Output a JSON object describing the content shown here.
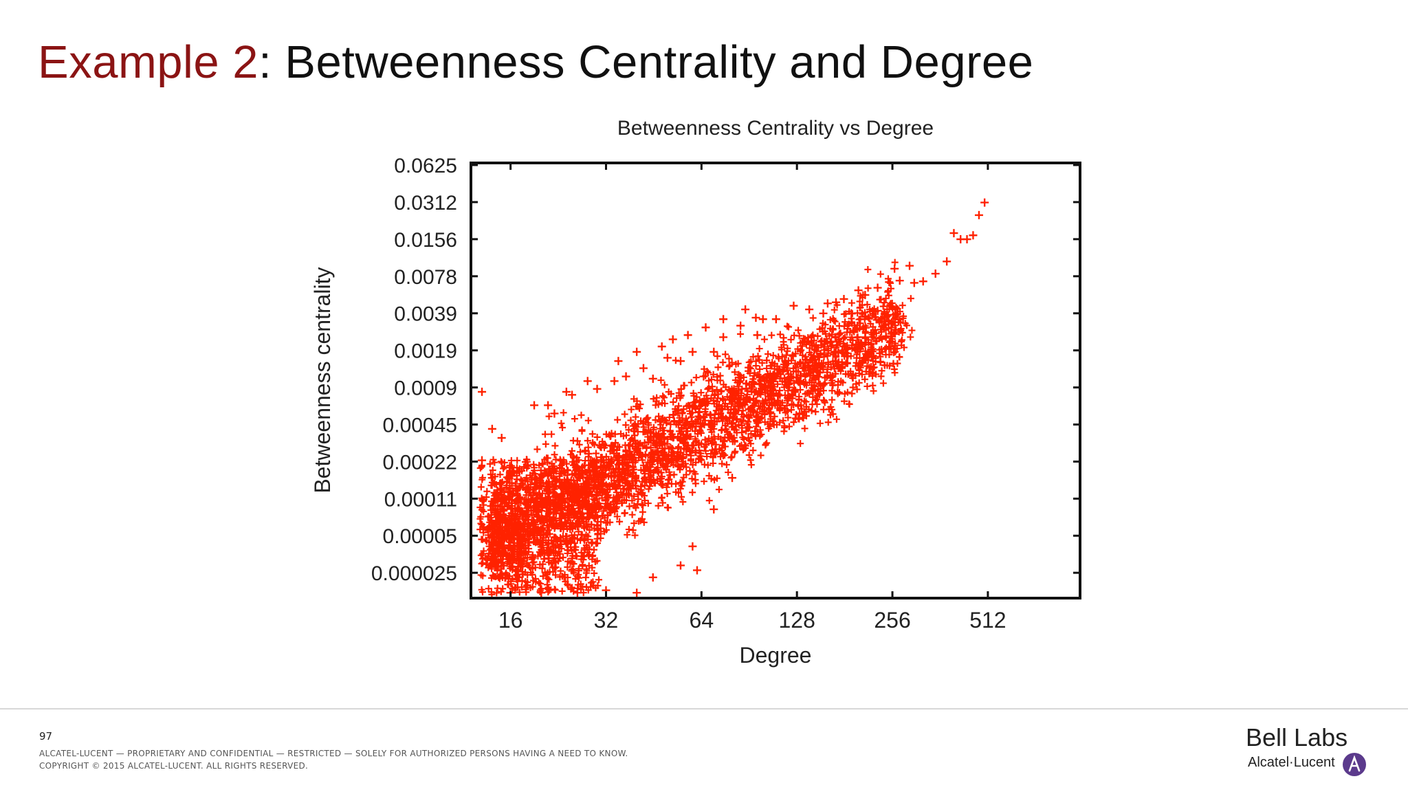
{
  "slide": {
    "title_accent": "Example 2",
    "title_rest": ": Betweenness Centrality and Degree",
    "page_number": "97",
    "footer_line1": "ALCATEL-LUCENT — PROPRIETARY AND CONFIDENTIAL — RESTRICTED — SOLELY FOR AUTHORIZED PERSONS HAVING A NEED TO KNOW.",
    "footer_line2": "COPYRIGHT © 2015 ALCATEL-LUCENT. ALL RIGHTS RESERVED.",
    "brand_name": "Bell Labs",
    "brand_company": "Alcatel·Lucent"
  },
  "chart_data": {
    "type": "scatter",
    "title": "Betweenness Centrality vs Degree",
    "xlabel": "Degree",
    "ylabel": "Betweenness centrality",
    "x_scale": "log2",
    "y_scale": "log2",
    "x_ticks": [
      "16",
      "32",
      "64",
      "128",
      "256",
      "512"
    ],
    "y_ticks": [
      "0.0625",
      "0.0312",
      "0.0156",
      "0.0078",
      "0.0039",
      "0.0019",
      "0.0009",
      "0.00045",
      "0.00022",
      "0.00011",
      "0.00005",
      "0.000025"
    ],
    "xlim": [
      12,
      1000
    ],
    "ylim": [
      1.9e-05,
      0.065
    ],
    "grid": false,
    "marker": "+",
    "color": "#ff2200",
    "point_count_note": "dense cloud of several thousand points; representative sample reproduced",
    "points": [
      [
        13,
        0.0009
      ],
      [
        15,
        0.00038
      ],
      [
        13,
        0.00025
      ],
      [
        14,
        0.00045
      ],
      [
        19,
        0.0007
      ],
      [
        21,
        0.0007
      ],
      [
        24,
        0.0009
      ],
      [
        25,
        0.00085
      ],
      [
        22,
        0.0006
      ],
      [
        28,
        0.0011
      ],
      [
        30,
        0.00095
      ],
      [
        34,
        0.0011
      ],
      [
        37,
        0.0012
      ],
      [
        42,
        0.0014
      ],
      [
        45,
        0.00115
      ],
      [
        50,
        0.0017
      ],
      [
        55,
        0.0016
      ],
      [
        60,
        0.0019
      ],
      [
        65,
        0.0012
      ],
      [
        70,
        0.0019
      ],
      [
        75,
        0.0025
      ],
      [
        85,
        0.0031
      ],
      [
        96,
        0.0026
      ],
      [
        100,
        0.0035
      ],
      [
        110,
        0.0035
      ],
      [
        125,
        0.0045
      ],
      [
        140,
        0.0042
      ],
      [
        155,
        0.0039
      ],
      [
        170,
        0.0048
      ],
      [
        160,
        0.0047
      ],
      [
        180,
        0.0051
      ],
      [
        190,
        0.0039
      ],
      [
        200,
        0.006
      ],
      [
        210,
        0.0055
      ],
      [
        230,
        0.0063
      ],
      [
        250,
        0.007
      ],
      [
        260,
        0.009
      ],
      [
        270,
        0.0072
      ],
      [
        290,
        0.0095
      ],
      [
        300,
        0.0069
      ],
      [
        320,
        0.0071
      ],
      [
        350,
        0.0082
      ],
      [
        380,
        0.0103
      ],
      [
        400,
        0.0175
      ],
      [
        420,
        0.0156
      ],
      [
        460,
        0.0168
      ],
      [
        480,
        0.0245
      ],
      [
        500,
        0.031
      ],
      [
        440,
        0.0156
      ],
      [
        230,
        0.0041
      ],
      [
        210,
        0.0025
      ],
      [
        180,
        0.0021
      ],
      [
        150,
        0.0015
      ],
      [
        130,
        0.0011
      ],
      [
        120,
        0.0008
      ],
      [
        105,
        0.0006
      ],
      [
        90,
        0.00038
      ],
      [
        80,
        0.00018
      ],
      [
        70,
        0.0001
      ],
      [
        60,
        5e-05
      ],
      [
        55,
        3.5e-05
      ],
      [
        62,
        3.2e-05
      ],
      [
        45,
        2.8e-05
      ],
      [
        40,
        2.1e-05
      ],
      [
        32,
        2.2e-05
      ],
      [
        26,
        2.1e-05
      ],
      [
        20,
        2.1e-05
      ],
      [
        16,
        2.1e-05
      ],
      [
        35,
        0.0016
      ],
      [
        40,
        0.0019
      ],
      [
        48,
        0.0021
      ],
      [
        52,
        0.0024
      ],
      [
        58,
        0.0026
      ],
      [
        66,
        0.003
      ],
      [
        75,
        0.0035
      ],
      [
        88,
        0.0042
      ],
      [
        95,
        0.0036
      ]
    ]
  }
}
